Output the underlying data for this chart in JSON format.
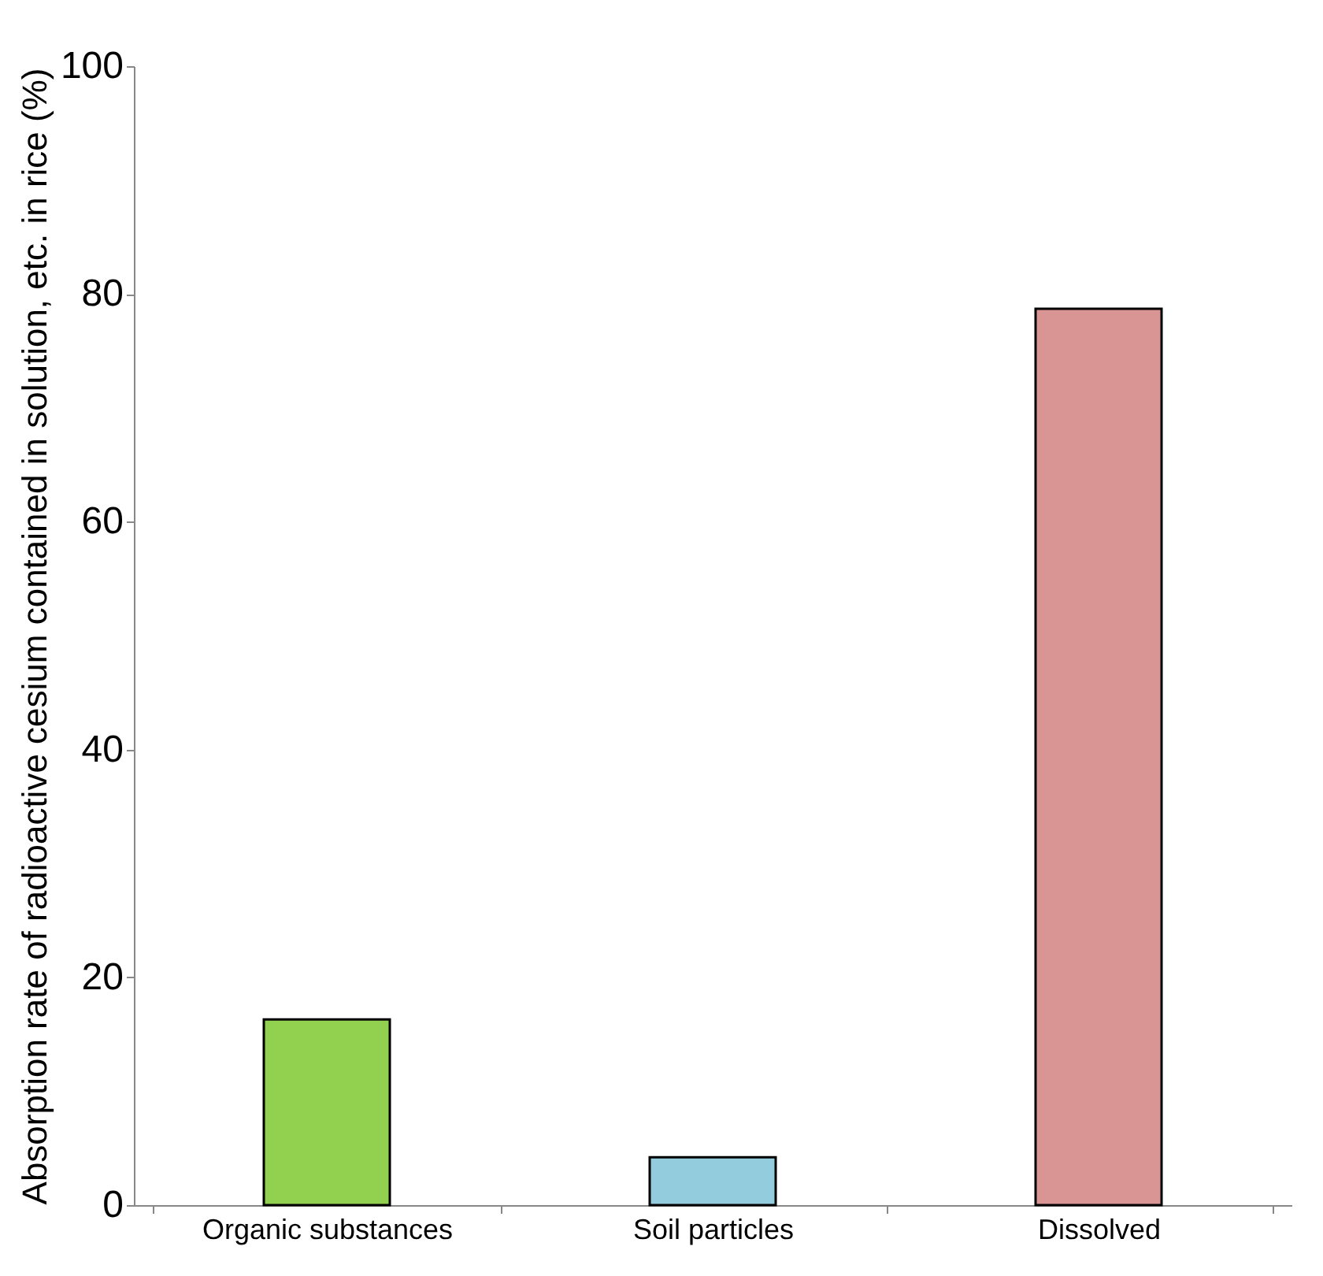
{
  "chart_data": {
    "type": "bar",
    "ylabel": "Absorption rate of radioactive cesium contained in solution, etc. in rice (%)",
    "categories": [
      "Organic substances",
      "Soil particles",
      "Dissolved"
    ],
    "values": [
      16.3,
      4.2,
      78.7
    ],
    "colors": [
      "#92d050",
      "#93cddd",
      "#d99594"
    ],
    "ylim": [
      0,
      100
    ],
    "yticks": [
      0,
      20,
      40,
      60,
      80,
      100
    ],
    "grid": false,
    "legend": false
  }
}
